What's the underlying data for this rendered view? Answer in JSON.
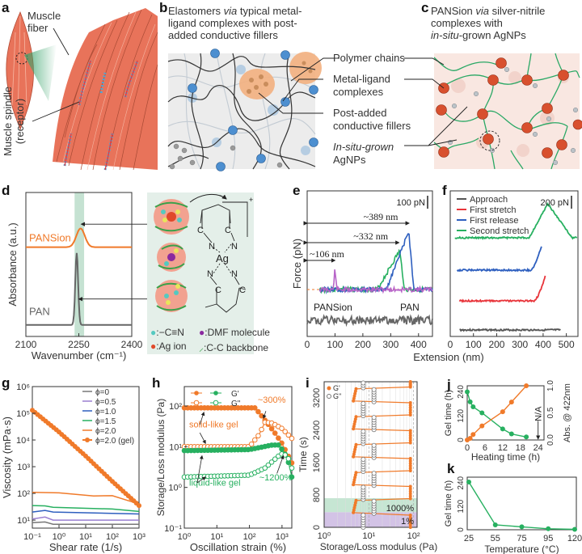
{
  "panels": {
    "a": {
      "label": "a",
      "muscle_fiber": [
        "Muscle",
        "fiber"
      ],
      "muscle_spindle": [
        "Muscle spindle",
        "(receptor)"
      ]
    },
    "b": {
      "label": "b",
      "title": [
        "Elastomers ",
        "via",
        " typical metal-",
        "ligand complexes with post-",
        "added conductive fillers"
      ],
      "legend": {
        "polymer_chains": "Polymer chains",
        "metal_ligand": [
          "Metal-ligand",
          "complexes"
        ],
        "post_added": [
          "Post-added",
          "conductive fillers"
        ],
        "in_situ": [
          "In-situ-grown",
          "AgNPs"
        ]
      }
    },
    "c": {
      "label": "c",
      "title": [
        "PANSion ",
        "via",
        " silver-nitrile",
        "complexes with",
        "in-situ",
        "-grown AgNPs"
      ]
    },
    "d": {
      "label": "d",
      "legend_cn": ":−C≡N",
      "legend_ag": ":Ag ion",
      "legend_dmf": ":DMF molecule",
      "legend_cc": ":C-C backbone",
      "structure": {
        "ag": "Ag",
        "n": "N",
        "c": "C",
        "charge": "+"
      }
    },
    "e": {
      "label": "e",
      "scale_bar": "100 pN"
    },
    "f": {
      "label": "f",
      "scale_bar": "200 pN"
    },
    "g": {
      "label": "g"
    },
    "h": {
      "label": "h",
      "annotations": {
        "solid": "solid-like gel",
        "liquid": "liquid-like gel",
        "p300": "~300%",
        "p1200": "~1200%"
      }
    },
    "i": {
      "label": "i",
      "band_1000": "1000%",
      "band_1": "1%"
    },
    "j": {
      "label": "j",
      "na": "N/A"
    },
    "k": {
      "label": "k"
    }
  },
  "chart_data": [
    {
      "id": "d",
      "type": "line",
      "title": "",
      "xlabel": "Wavenumber (cm⁻¹)",
      "ylabel": "Absorbance (a.u.)",
      "xlim": [
        2100,
        2400
      ],
      "xticks": [
        "2100",
        "2250",
        "2400"
      ],
      "highlight_band": [
        2238,
        2265
      ],
      "series": [
        {
          "name": "PANSion",
          "color": "#f07a2a",
          "peak_x": 2255,
          "baseline_offset": 0.62,
          "peak_height": 0.13,
          "width": 12
        },
        {
          "name": "PAN",
          "color": "#666666",
          "peak_x": 2244,
          "baseline_offset": 0.08,
          "peak_height": 0.5,
          "width": 4
        }
      ]
    },
    {
      "id": "e",
      "type": "line",
      "xlabel": "Extension (nm)",
      "ylabel": "Force (pN)",
      "xlim": [
        0,
        450
      ],
      "xticks": [
        "0",
        "100",
        "200",
        "300",
        "400"
      ],
      "annotations": [
        "~106 nm",
        "~332 nm",
        "~389 nm",
        "PANSion",
        "PAN"
      ],
      "series": [
        {
          "name": "PANSion (purple)",
          "color": "#b764c8",
          "rupture_nm": 106
        },
        {
          "name": "PANSion (green)",
          "color": "#27b060",
          "rupture_nm": 332
        },
        {
          "name": "PANSion (blue)",
          "color": "#2e5fbf",
          "rupture_nm": 389
        },
        {
          "name": "PAN",
          "color": "#666666",
          "rupture_nm": null
        }
      ]
    },
    {
      "id": "f",
      "type": "line",
      "xlabel": "Extension (nm)",
      "xlim": [
        0,
        550
      ],
      "xticks": [
        "0",
        "100",
        "200",
        "300",
        "400",
        "500"
      ],
      "legend": "top-left",
      "series": [
        {
          "name": "Approach",
          "color": "#555555",
          "x": [
            40,
            475
          ],
          "rise_start": null,
          "end_x": 475
        },
        {
          "name": "First stretch",
          "color": "#e8343a",
          "x": [
            40,
            410
          ],
          "rise_start": 360,
          "end_x": 410
        },
        {
          "name": "First release",
          "color": "#2e5fbf",
          "x": [
            30,
            395
          ],
          "rise_start": 345,
          "end_x": 395
        },
        {
          "name": "Second stretch",
          "color": "#27b060",
          "x": [
            20,
            545
          ],
          "rise_start": 340,
          "peak_x": 420,
          "end_x": 545
        }
      ]
    },
    {
      "id": "g",
      "type": "line",
      "xlabel": "Shear rate (1/s)",
      "ylabel": "Viscosity (mPa·s)",
      "xscale": "log",
      "yscale": "log",
      "xlim": [
        0.1,
        1000
      ],
      "ylim": [
        5,
        1000000
      ],
      "xticks": [
        "10⁻¹",
        "10⁰",
        "10¹",
        "10²",
        "10³"
      ],
      "yticks": [
        "10¹",
        "10²",
        "10³",
        "10⁴",
        "10⁵",
        "10⁶"
      ],
      "legend": "top-right",
      "series": [
        {
          "name": "ϕ=0",
          "color": "#777777",
          "values": [
            [
              0.1,
              8
            ],
            [
              0.3,
              8.5
            ],
            [
              0.6,
              7
            ],
            [
              1000,
              7
            ]
          ]
        },
        {
          "name": "ϕ=0.5",
          "color": "#9a7fd1",
          "values": [
            [
              0.1,
              11
            ],
            [
              0.3,
              13
            ],
            [
              0.6,
              10
            ],
            [
              1000,
              10
            ]
          ]
        },
        {
          "name": "ϕ=1.0",
          "color": "#2e5fbf",
          "values": [
            [
              0.1,
              20
            ],
            [
              0.3,
              23
            ],
            [
              0.6,
              20
            ],
            [
              1000,
              17
            ]
          ]
        },
        {
          "name": "ϕ=1.5",
          "color": "#27b060",
          "values": [
            [
              0.1,
              35
            ],
            [
              0.3,
              34
            ],
            [
              0.6,
              30
            ],
            [
              100,
              26
            ],
            [
              1000,
              21
            ]
          ]
        },
        {
          "name": "ϕ=2.0",
          "color": "#f07a2a",
          "values": [
            [
              0.1,
              110
            ],
            [
              1,
              105
            ],
            [
              20,
              80
            ],
            [
              100,
              82
            ],
            [
              1000,
              40
            ]
          ]
        },
        {
          "name": "ϕ=2.0 (gel)",
          "color": "#f07a2a",
          "marker": true,
          "values": [
            [
              0.1,
              130000
            ],
            [
              1,
              20000
            ],
            [
              10,
              2500
            ],
            [
              100,
              280
            ],
            [
              1000,
              35
            ]
          ]
        }
      ]
    },
    {
      "id": "h",
      "type": "line",
      "xlabel": "Oscillation strain (%)",
      "ylabel": "Storage/Loss modulus (Pa)",
      "xscale": "log",
      "yscale": "log",
      "xlim": [
        1,
        2000
      ],
      "ylim": [
        0.1,
        300
      ],
      "xticks": [
        "10⁰",
        "10¹",
        "10²",
        "10³"
      ],
      "yticks": [
        "10⁻¹",
        "10⁰",
        "10¹",
        "10²"
      ],
      "legend": "top-left",
      "legend_labels": [
        "G'",
        "G\""
      ],
      "series": [
        {
          "name": "G' solid-like",
          "color": "#f07a2a",
          "filled": true,
          "values": [
            [
              1,
              90
            ],
            [
              150,
              90
            ],
            [
              300,
              45
            ],
            [
              600,
              22
            ],
            [
              1000,
              12
            ],
            [
              2000,
              4
            ]
          ]
        },
        {
          "name": "G\" solid-like",
          "color": "#f07a2a",
          "filled": false,
          "values": [
            [
              1,
              10
            ],
            [
              100,
              10
            ],
            [
              200,
              20
            ],
            [
              300,
              40
            ],
            [
              500,
              38
            ],
            [
              1000,
              28
            ],
            [
              2000,
              16
            ]
          ]
        },
        {
          "name": "G' liquid-like",
          "color": "#27b060",
          "filled": true,
          "values": [
            [
              1,
              8
            ],
            [
              100,
              8.5
            ],
            [
              500,
              11
            ],
            [
              800,
              11
            ],
            [
              1200,
              7
            ],
            [
              1600,
              4
            ],
            [
              2000,
              1.8
            ]
          ]
        },
        {
          "name": "G\" liquid-like",
          "color": "#27b060",
          "filled": false,
          "values": [
            [
              1,
              1.8
            ],
            [
              100,
              2
            ],
            [
              300,
              3
            ],
            [
              800,
              6
            ],
            [
              1100,
              7
            ],
            [
              1600,
              5
            ],
            [
              2000,
              3
            ]
          ]
        }
      ]
    },
    {
      "id": "i",
      "type": "line",
      "xlabel": "Storage/Loss modulus (Pa)",
      "ylabel": "Time (s)",
      "xscale": "log",
      "xlim": [
        1,
        120
      ],
      "ylim": [
        0,
        3600
      ],
      "xticks": [
        "10⁰",
        "10¹",
        "10²"
      ],
      "yticks": [
        "0",
        "800",
        "1600",
        "2400",
        "3200"
      ],
      "legend": "top-left",
      "legend_labels": [
        "G'",
        "G\""
      ],
      "strain_steps": [
        "1%",
        "1000%",
        "1%",
        "1000%",
        "1%",
        "1000%",
        "1%",
        "1000%",
        "1%",
        "1000%",
        "1%"
      ],
      "step_duration_s": 300,
      "values": {
        "Gp_low_strain": 85,
        "Gp_high_strain": 4.5,
        "Gpp_low_strain": 7.5,
        "Gpp_high_strain": 13
      }
    },
    {
      "id": "j",
      "type": "line",
      "xlabel": "Heating time (h)",
      "ylabel": "Gel time (h)",
      "ylabel_right": "Abs. @ 422nm",
      "xlim": [
        0,
        26
      ],
      "ylim": [
        0,
        270
      ],
      "ylim_right": [
        0,
        1.0
      ],
      "xticks": [
        "0",
        "6",
        "12",
        "18",
        "24"
      ],
      "yticks": [
        "0",
        "120",
        "240"
      ],
      "yticks_right": [
        "0.0",
        "0.5",
        "1.0"
      ],
      "series": [
        {
          "name": "Gel time",
          "color": "#27b060",
          "axis": "left",
          "x": [
            0,
            1,
            2,
            5,
            12,
            15,
            20
          ],
          "y": [
            240,
            190,
            165,
            135,
            55,
            30,
            15
          ]
        },
        {
          "name": "Abs. @ 422nm",
          "color": "#f07a2a",
          "axis": "right",
          "x": [
            0,
            1,
            2,
            5,
            12,
            15,
            20
          ],
          "y": [
            0.0,
            0.03,
            0.1,
            0.26,
            0.52,
            0.7,
            1.0
          ]
        }
      ],
      "annotation": "N/A at 24 h"
    },
    {
      "id": "k",
      "type": "line",
      "xlabel": "Temperature (°C)",
      "ylabel": "Gel time (h)",
      "ylim": [
        0,
        270
      ],
      "categories": [
        "25",
        "55",
        "75",
        "95",
        "120"
      ],
      "yticks": [
        "0",
        "120",
        "240"
      ],
      "series": [
        {
          "name": "Gel time",
          "color": "#27b060",
          "x": [
            25,
            55,
            75,
            95,
            120
          ],
          "y": [
            245,
            25,
            15,
            5,
            2
          ]
        }
      ]
    }
  ]
}
